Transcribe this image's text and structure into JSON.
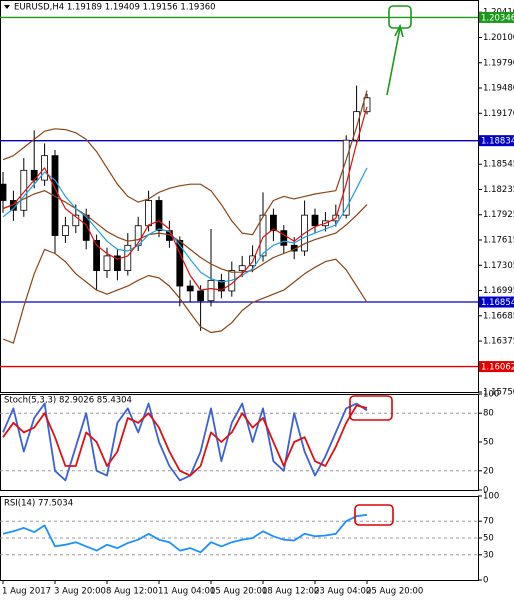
{
  "chart_data": [
    {
      "type": "candlestick",
      "title": "EURUSD,H4 1.19189 1.19409 1.19156 1.19360",
      "categories": [
        "1 Aug 2017",
        null,
        null,
        null,
        null,
        "3 Aug 20:00",
        null,
        null,
        null,
        null,
        "8 Aug 12:00",
        null,
        null,
        null,
        null,
        "11 Aug 04:00",
        null,
        null,
        null,
        null,
        "15 Aug 20:00",
        null,
        null,
        null,
        null,
        "18 Aug 12:00",
        null,
        null,
        null,
        null,
        "23 Aug 04:00",
        null,
        null,
        null,
        null,
        "25 Aug 20:00"
      ],
      "open": [
        1.183,
        1.181,
        1.1798,
        1.1847,
        1.1835,
        1.1865,
        1.1767,
        1.1779,
        1.1792,
        1.1761,
        1.1724,
        1.1742,
        1.1724,
        1.1755,
        1.1779,
        1.181,
        1.1773,
        1.1761,
        1.1705,
        1.1699,
        1.1687,
        1.1712,
        1.1699,
        1.1724,
        1.173,
        1.1742,
        1.1792,
        1.1773,
        1.1755,
        1.1748,
        1.1792,
        1.1779,
        1.1785,
        1.1792,
        1.1884,
        1.19189
      ],
      "high": [
        1.1845,
        1.1822,
        1.1862,
        1.1896,
        1.188,
        1.1872,
        1.179,
        1.1805,
        1.18,
        1.1768,
        1.1752,
        1.175,
        1.177,
        1.179,
        1.1822,
        1.1815,
        1.1785,
        1.1766,
        1.1712,
        1.1706,
        1.1775,
        1.172,
        1.1735,
        1.1742,
        1.1755,
        1.182,
        1.18,
        1.178,
        1.1765,
        1.181,
        1.18,
        1.1796,
        1.1805,
        1.189,
        1.1951,
        1.19409
      ],
      "low": [
        1.1795,
        1.1785,
        1.179,
        1.1825,
        1.1828,
        1.1745,
        1.1758,
        1.177,
        1.175,
        1.17,
        1.1715,
        1.1712,
        1.1718,
        1.1748,
        1.1772,
        1.1765,
        1.1752,
        1.168,
        1.1685,
        1.165,
        1.168,
        1.169,
        1.1692,
        1.1716,
        1.1722,
        1.1735,
        1.176,
        1.1745,
        1.1738,
        1.1742,
        1.177,
        1.1772,
        1.1778,
        1.1788,
        1.1878,
        1.19156
      ],
      "close": [
        1.181,
        1.1798,
        1.1847,
        1.1835,
        1.1865,
        1.1767,
        1.1779,
        1.1792,
        1.1761,
        1.1724,
        1.1742,
        1.1724,
        1.1755,
        1.1779,
        1.181,
        1.1773,
        1.1761,
        1.1705,
        1.1699,
        1.1687,
        1.1712,
        1.1699,
        1.1724,
        1.173,
        1.1742,
        1.1792,
        1.1773,
        1.1755,
        1.1748,
        1.1792,
        1.1779,
        1.1785,
        1.1792,
        1.1884,
        1.1919,
        1.1936
      ],
      "series": [
        {
          "color": "#8b4513",
          "values": [
            1.186,
            1.1865,
            1.1875,
            1.1885,
            1.1895,
            1.1898,
            1.1897,
            1.1893,
            1.1885,
            1.187,
            1.185,
            1.183,
            1.1815,
            1.1808,
            1.1812,
            1.182,
            1.1825,
            1.1828,
            1.183,
            1.183,
            1.1822,
            1.1805,
            1.1785,
            1.177,
            1.1768,
            1.179,
            1.181,
            1.1815,
            1.1812,
            1.1815,
            1.1818,
            1.182,
            1.1822,
            1.186,
            1.19,
            1.1945
          ]
        },
        {
          "color": "#8b4513",
          "values": [
            1.18,
            1.1805,
            1.1812,
            1.1818,
            1.1822,
            1.1815,
            1.1808,
            1.18,
            1.1792,
            1.1782,
            1.1772,
            1.1765,
            1.176,
            1.1762,
            1.1768,
            1.177,
            1.1768,
            1.176,
            1.175,
            1.174,
            1.1732,
            1.1726,
            1.1722,
            1.1722,
            1.1724,
            1.1732,
            1.174,
            1.1745,
            1.175,
            1.1757,
            1.1762,
            1.1766,
            1.177,
            1.178,
            1.1792,
            1.1805
          ]
        },
        {
          "color": "#8b4513",
          "values": [
            1.164,
            1.1635,
            1.168,
            1.172,
            1.175,
            1.1745,
            1.1735,
            1.172,
            1.171,
            1.17,
            1.1695,
            1.17,
            1.1705,
            1.1712,
            1.1718,
            1.1715,
            1.1705,
            1.169,
            1.1672,
            1.1655,
            1.1648,
            1.165,
            1.166,
            1.1675,
            1.1685,
            1.169,
            1.1695,
            1.17,
            1.171,
            1.172,
            1.1728,
            1.1735,
            1.1738,
            1.1725,
            1.1705,
            1.1685
          ]
        },
        {
          "color": "#1ea0e6",
          "values": [
            1.179,
            1.18,
            1.1815,
            1.183,
            1.1845,
            1.1835,
            1.1815,
            1.18,
            1.179,
            1.1775,
            1.176,
            1.175,
            1.1748,
            1.1755,
            1.1768,
            1.1775,
            1.1772,
            1.1755,
            1.1738,
            1.1722,
            1.1714,
            1.171,
            1.1712,
            1.1718,
            1.1726,
            1.1745,
            1.1755,
            1.176,
            1.1758,
            1.1765,
            1.177,
            1.1775,
            1.178,
            1.18,
            1.1825,
            1.185
          ]
        },
        {
          "color": "#e01010",
          "values": [
            1.18,
            1.1805,
            1.182,
            1.1835,
            1.185,
            1.1825,
            1.18,
            1.179,
            1.178,
            1.1755,
            1.1745,
            1.1738,
            1.1742,
            1.1758,
            1.178,
            1.1785,
            1.1775,
            1.1745,
            1.1718,
            1.17,
            1.1702,
            1.17,
            1.1708,
            1.172,
            1.1735,
            1.1765,
            1.1775,
            1.1768,
            1.176,
            1.177,
            1.1778,
            1.1782,
            1.1788,
            1.183,
            1.188,
            1.1925
          ]
        }
      ],
      "levels": [
        {
          "value": 1.20346,
          "color": "#1a9a1a"
        },
        {
          "value": 1.18834,
          "color": "#0000c8"
        },
        {
          "value": 1.16854,
          "color": "#0000c8"
        },
        {
          "value": 1.16062,
          "color": "#e00000"
        }
      ],
      "ylim": [
        1.1575,
        1.2056
      ],
      "yticks": [
        {
          "value": 1.2041,
          "label": "1.20410"
        },
        {
          "value": 1.201,
          "label": "1.20100"
        },
        {
          "value": 1.1979,
          "label": "1.19790"
        },
        {
          "value": 1.1948,
          "label": "1.19480"
        },
        {
          "value": 1.1917,
          "label": "1.19170"
        },
        1.18545,
        1.18235,
        1.17925,
        1.17615,
        1.17305,
        1.16995,
        1.16685,
        1.16375,
        {
          "value": 1.1575,
          "label": "1.15750"
        }
      ]
    },
    {
      "type": "line",
      "title": "Stoch(5,3,3) 82.9026 85.4304",
      "series": [
        {
          "color": "#3a62d8",
          "values": [
            60,
            85,
            40,
            75,
            90,
            20,
            10,
            45,
            80,
            20,
            15,
            70,
            85,
            60,
            90,
            50,
            25,
            10,
            15,
            40,
            85,
            30,
            70,
            90,
            50,
            85,
            30,
            20,
            80,
            40,
            15,
            35,
            60,
            85,
            90,
            82.9026
          ]
        },
        {
          "color": "#e01010",
          "values": [
            55,
            70,
            60,
            65,
            80,
            55,
            25,
            25,
            60,
            50,
            25,
            40,
            75,
            70,
            80,
            65,
            40,
            20,
            15,
            25,
            60,
            50,
            60,
            80,
            65,
            75,
            50,
            25,
            50,
            55,
            30,
            25,
            45,
            70,
            88,
            85.4304
          ]
        }
      ],
      "levels": [
        80,
        20
      ],
      "ylim": [
        0,
        100
      ],
      "yticks": [
        100,
        80,
        50,
        20,
        0
      ]
    },
    {
      "type": "line",
      "title": "RSI(14) 77.5034",
      "series": [
        {
          "color": "#1e90ff",
          "values": [
            55,
            58,
            62,
            57,
            65,
            40,
            42,
            45,
            40,
            35,
            42,
            38,
            44,
            48,
            55,
            48,
            45,
            35,
            38,
            33,
            45,
            40,
            45,
            48,
            50,
            58,
            52,
            48,
            47,
            55,
            52,
            53,
            55,
            70,
            76,
            77.5034
          ]
        }
      ],
      "levels": [
        70,
        50,
        30
      ],
      "ylim": [
        0,
        100
      ],
      "yticks": [
        100,
        70,
        50,
        30,
        0
      ]
    }
  ]
}
